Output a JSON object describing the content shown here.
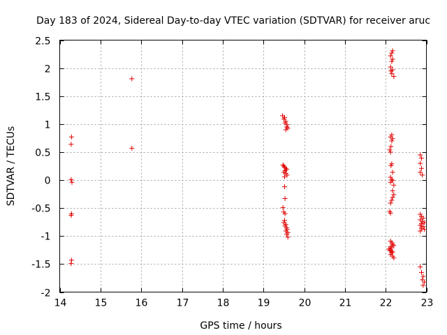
{
  "chart_data": {
    "type": "scatter",
    "title": "Day 183 of 2024, Sidereal Day-to-day VTEC variation (SDTVAR) for receiver aruc",
    "xlabel": "GPS time / hours",
    "ylabel": "SDTVAR / TECUs",
    "xlim": [
      14,
      23
    ],
    "ylim": [
      -2,
      2.5
    ],
    "xticks": [
      14,
      15,
      16,
      17,
      18,
      19,
      20,
      21,
      22,
      23
    ],
    "xtick_labels": [
      "14",
      "15",
      "16",
      "17",
      "18",
      "19",
      "20",
      "21",
      "22",
      "23"
    ],
    "yticks": [
      -2,
      -1.5,
      -1,
      -0.5,
      0,
      0.5,
      1,
      1.5,
      2,
      2.5
    ],
    "ytick_labels": [
      "-2",
      "-1.5",
      "-1",
      "-0.5",
      "0",
      "0.5",
      "1",
      "1.5",
      "2",
      "2.5"
    ],
    "grid": true,
    "marker": "+",
    "color": "#e00000",
    "series": [
      {
        "name": "SDTVAR",
        "points": [
          [
            14.29,
            0.77
          ],
          [
            14.28,
            0.64
          ],
          [
            14.28,
            0.01
          ],
          [
            14.3,
            -0.04
          ],
          [
            14.29,
            -0.6
          ],
          [
            14.28,
            -0.63
          ],
          [
            14.29,
            -1.43
          ],
          [
            14.28,
            -1.49
          ],
          [
            15.77,
            1.81
          ],
          [
            15.77,
            0.57
          ],
          [
            19.47,
            1.15
          ],
          [
            19.52,
            1.12
          ],
          [
            19.5,
            1.09
          ],
          [
            19.55,
            1.05
          ],
          [
            19.53,
            1.02
          ],
          [
            19.58,
            0.99
          ],
          [
            19.57,
            0.95
          ],
          [
            19.6,
            0.93
          ],
          [
            19.55,
            0.9
          ],
          [
            19.48,
            0.27
          ],
          [
            19.5,
            0.25
          ],
          [
            19.52,
            0.23
          ],
          [
            19.55,
            0.21
          ],
          [
            19.57,
            0.19
          ],
          [
            19.53,
            0.17
          ],
          [
            19.5,
            0.14
          ],
          [
            19.55,
            0.12
          ],
          [
            19.58,
            0.09
          ],
          [
            19.52,
            0.06
          ],
          [
            19.52,
            -0.12
          ],
          [
            19.53,
            -0.33
          ],
          [
            19.48,
            -0.49
          ],
          [
            19.5,
            -0.57
          ],
          [
            19.53,
            -0.6
          ],
          [
            19.52,
            -0.72
          ],
          [
            19.5,
            -0.76
          ],
          [
            19.55,
            -0.79
          ],
          [
            19.53,
            -0.82
          ],
          [
            19.57,
            -0.85
          ],
          [
            19.58,
            -0.88
          ],
          [
            19.55,
            -0.91
          ],
          [
            19.6,
            -0.94
          ],
          [
            19.57,
            -0.97
          ],
          [
            19.6,
            -1.02
          ],
          [
            22.17,
            2.31
          ],
          [
            22.15,
            2.27
          ],
          [
            22.12,
            2.22
          ],
          [
            22.17,
            2.16
          ],
          [
            22.15,
            2.12
          ],
          [
            22.12,
            2.02
          ],
          [
            22.17,
            1.97
          ],
          [
            22.13,
            1.95
          ],
          [
            22.15,
            1.9
          ],
          [
            22.2,
            1.85
          ],
          [
            22.15,
            0.81
          ],
          [
            22.12,
            0.77
          ],
          [
            22.17,
            0.74
          ],
          [
            22.15,
            0.7
          ],
          [
            22.13,
            0.6
          ],
          [
            22.1,
            0.54
          ],
          [
            22.12,
            0.5
          ],
          [
            22.15,
            0.29
          ],
          [
            22.13,
            0.26
          ],
          [
            22.17,
            0.14
          ],
          [
            22.12,
            0.05
          ],
          [
            22.15,
            0.01
          ],
          [
            22.17,
            -0.01
          ],
          [
            22.12,
            -0.04
          ],
          [
            22.2,
            -0.09
          ],
          [
            22.17,
            -0.19
          ],
          [
            22.2,
            -0.26
          ],
          [
            22.17,
            -0.31
          ],
          [
            22.15,
            -0.36
          ],
          [
            22.12,
            -0.41
          ],
          [
            22.1,
            -0.56
          ],
          [
            22.12,
            -0.59
          ],
          [
            22.12,
            -1.09
          ],
          [
            22.15,
            -1.12
          ],
          [
            22.17,
            -1.15
          ],
          [
            22.2,
            -1.17
          ],
          [
            22.12,
            -1.19
          ],
          [
            22.15,
            -1.21
          ],
          [
            22.08,
            -1.23
          ],
          [
            22.1,
            -1.25
          ],
          [
            22.13,
            -1.26
          ],
          [
            22.17,
            -1.28
          ],
          [
            22.15,
            -1.3
          ],
          [
            22.12,
            -1.33
          ],
          [
            22.17,
            -1.36
          ],
          [
            22.2,
            -1.39
          ],
          [
            22.85,
            0.45
          ],
          [
            22.88,
            0.39
          ],
          [
            22.85,
            0.3
          ],
          [
            22.88,
            0.21
          ],
          [
            22.85,
            0.14
          ],
          [
            22.9,
            0.09
          ],
          [
            22.85,
            -0.61
          ],
          [
            22.88,
            -0.65
          ],
          [
            22.92,
            -0.68
          ],
          [
            22.85,
            -0.71
          ],
          [
            22.9,
            -0.74
          ],
          [
            22.95,
            -0.76
          ],
          [
            22.88,
            -0.78
          ],
          [
            22.85,
            -0.81
          ],
          [
            22.92,
            -0.83
          ],
          [
            22.88,
            -0.86
          ],
          [
            22.95,
            -0.88
          ],
          [
            22.85,
            -0.91
          ],
          [
            22.85,
            -1.55
          ],
          [
            22.88,
            -1.65
          ],
          [
            22.92,
            -1.72
          ],
          [
            22.9,
            -1.78
          ],
          [
            22.95,
            -1.82
          ],
          [
            22.92,
            -1.88
          ]
        ]
      }
    ]
  }
}
